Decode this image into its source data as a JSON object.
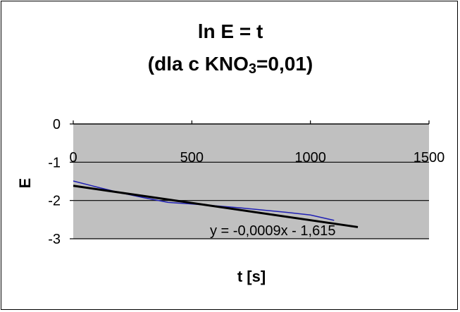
{
  "chart_data": {
    "type": "line",
    "title_line1": "ln E = t",
    "title_line2_prefix": "(dla c KNO",
    "title_line2_sub": "3",
    "title_line2_suffix": "=0,01)",
    "xlabel": "t [s]",
    "ylabel": "E",
    "xlim": [
      0,
      1500
    ],
    "ylim": [
      -3,
      0
    ],
    "x_ticks": [
      0,
      500,
      1000,
      1500
    ],
    "x_tick_labels": [
      "0",
      "500",
      "1000",
      "1500"
    ],
    "y_ticks": [
      0,
      -1,
      -2,
      -3
    ],
    "y_tick_labels": [
      "0",
      "-1",
      "-2",
      "-3"
    ],
    "grid": "horizontal",
    "series": [
      {
        "x": [
          0,
          100,
          200,
          300,
          400,
          500,
          600,
          700,
          800,
          900,
          1000,
          1100
        ],
        "y": [
          -1.49,
          -1.65,
          -1.8,
          -1.93,
          -2.05,
          -2.09,
          -2.14,
          -2.19,
          -2.25,
          -2.31,
          -2.38,
          -2.52
        ],
        "color": "#1f1fb4"
      }
    ],
    "trendline": {
      "slope": -0.0009,
      "intercept": -1.615,
      "x_range": [
        0,
        1200
      ],
      "color": "#000000",
      "equation_label": "y = -0,0009x - 1,615"
    },
    "colors": {
      "plot_area": "#c0c0c0",
      "gridline": "#000000"
    }
  }
}
